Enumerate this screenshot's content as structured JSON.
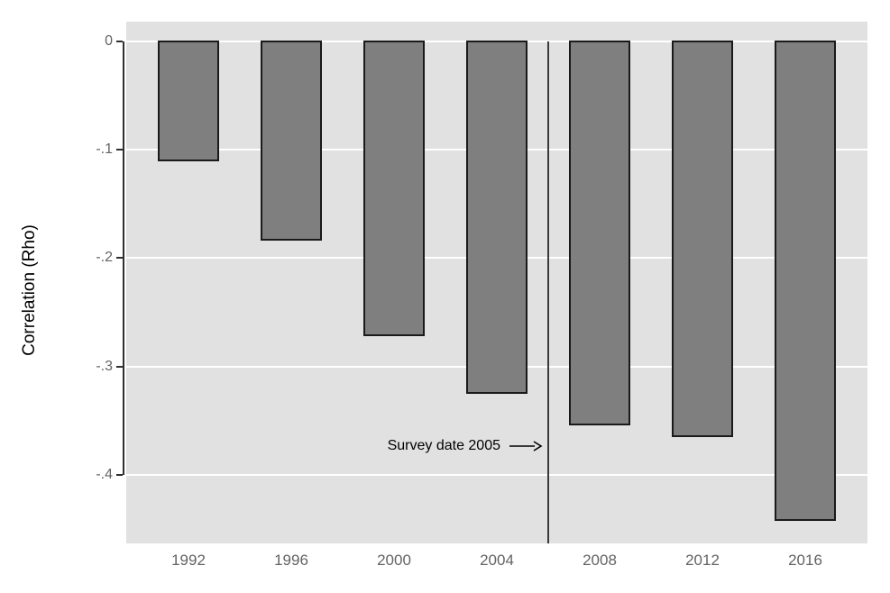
{
  "chart_data": {
    "type": "bar",
    "title": "",
    "xlabel": "",
    "ylabel": "Correlation (Rho)",
    "categories": [
      "1992",
      "1996",
      "2000",
      "2004",
      "2008",
      "2012",
      "2016"
    ],
    "values": [
      -0.111,
      -0.184,
      -0.272,
      -0.325,
      -0.354,
      -0.365,
      -0.442
    ],
    "ylim": [
      -0.463,
      0.018
    ],
    "yticks": [
      {
        "value": 0,
        "label": "0"
      },
      {
        "value": -0.1,
        "label": "-.1"
      },
      {
        "value": -0.2,
        "label": "-.2"
      },
      {
        "value": -0.3,
        "label": "-.3"
      },
      {
        "value": -0.4,
        "label": "-.4"
      }
    ],
    "grid": "horizontal",
    "legend": "none",
    "annotation": {
      "text": "Survey date 2005",
      "points_to": "vline"
    },
    "vline": {
      "between_categories": [
        "2004",
        "2008"
      ]
    },
    "colors": {
      "bar_fill": "#7f7f7f",
      "bar_border": "#1a1a1a",
      "plot_background": "#e1e1e1",
      "gridline": "#ffffff",
      "axis_line": "#2f2f2f",
      "tick_label": "#636363",
      "annotation_text": "#000000",
      "vline": "#3a3a3a",
      "page_background": "#ffffff"
    }
  }
}
